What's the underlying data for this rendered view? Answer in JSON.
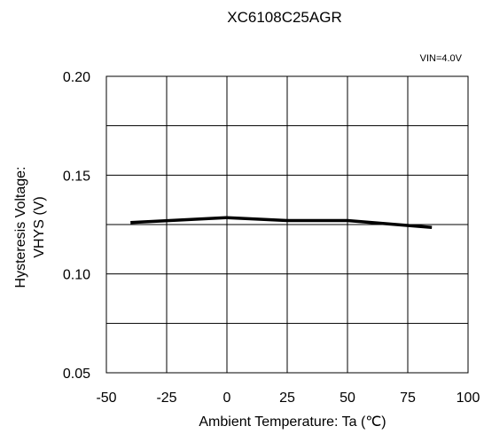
{
  "chart_data": {
    "type": "line",
    "title": "XC6108C25AGR",
    "condition": "VIN=4.0V",
    "xlabel": "Ambient Temperature: Ta (℃)",
    "ylabel_line1": "Hysteresis Voltage:",
    "ylabel_line2": "VHYS  (V)",
    "xlim": [
      -50,
      100
    ],
    "ylim": [
      0.05,
      0.2
    ],
    "x_ticks": [
      -50,
      -25,
      0,
      25,
      50,
      75,
      100
    ],
    "x_tick_labels": [
      "-50",
      "-25",
      "0",
      "25",
      "50",
      "75",
      "100"
    ],
    "y_ticks": [
      0.05,
      0.1,
      0.15,
      0.2
    ],
    "y_tick_labels": [
      "0.05",
      "0.10",
      "0.15",
      "0.20"
    ],
    "y_gridlines": [
      0.075,
      0.1,
      0.125,
      0.15,
      0.175
    ],
    "grid": true,
    "series": [
      {
        "color": "#000000",
        "x": [
          -40,
          0,
          25,
          50,
          85
        ],
        "values": [
          0.126,
          0.1285,
          0.127,
          0.127,
          0.1235
        ]
      }
    ]
  }
}
